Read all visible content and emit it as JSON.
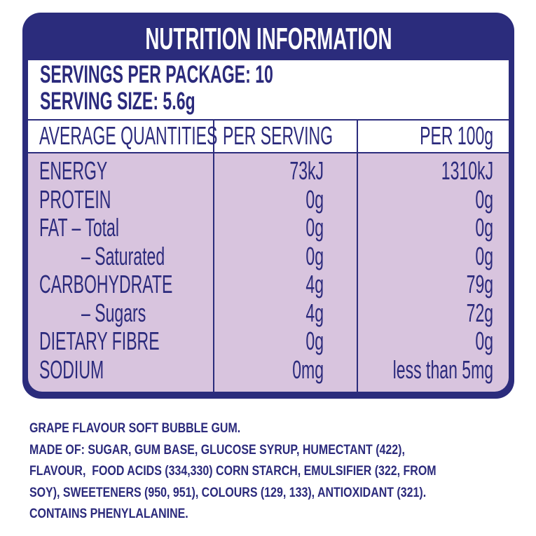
{
  "header": {
    "title": "NUTRITION INFORMATION",
    "servings_per_package": "SERVINGS PER PACKAGE: 10",
    "serving_size": "SERVING SIZE: 5.6g"
  },
  "table": {
    "columns": [
      "AVERAGE QUANTITIES",
      "PER SERVING",
      "PER 100g"
    ],
    "rows": [
      [
        "ENERGY",
        "73kJ",
        "1310kJ"
      ],
      [
        "PROTEIN",
        "0g",
        "0g"
      ],
      [
        "FAT – Total",
        "0g",
        "0g"
      ],
      [
        "– Saturated",
        "0g",
        "0g"
      ],
      [
        "CARBOHYDRATE",
        "4g",
        "79g"
      ],
      [
        "– Sugars",
        "4g",
        "72g"
      ],
      [
        "DIETARY FIBRE",
        "0g",
        "0g"
      ],
      [
        "SODIUM",
        "0mg",
        "less than 5mg"
      ]
    ]
  },
  "ingredients": [
    "GRAPE FLAVOUR SOFT BUBBLE GUM.",
    "MADE OF: SUGAR, GUM BASE, GLUCOSE SYRUP, HUMECTANT (422),",
    "FLAVOUR,  FOOD ACIDS (334,330) CORN STARCH, EMULSIFIER (322, FROM",
    "SOY), SWEETENERS (950, 951), COLOURS (129, 133), ANTIOXIDANT (321).",
    "CONTAINS PHENYLALANINE."
  ]
}
